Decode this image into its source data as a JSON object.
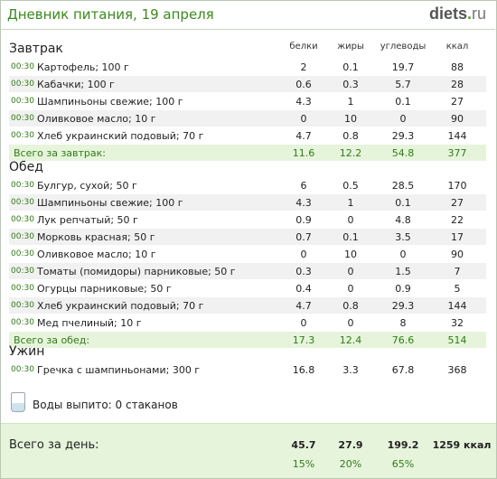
{
  "header": {
    "title": "Дневник питания, 19 апреля",
    "logo_main": "diets",
    "logo_dot": ".",
    "logo_tld": "ru"
  },
  "columns": {
    "protein": "белки",
    "fat": "жиры",
    "carbs": "углеводы",
    "kcal": "ккал"
  },
  "meals": [
    {
      "title": "Завтрак",
      "items": [
        {
          "time": "00:30",
          "name": "Картофель; 100 г",
          "protein": "2",
          "fat": "0.1",
          "carbs": "19.7",
          "kcal": "88"
        },
        {
          "time": "00:30",
          "name": "Кабачки; 100 г",
          "protein": "0.6",
          "fat": "0.3",
          "carbs": "5.7",
          "kcal": "28"
        },
        {
          "time": "00:30",
          "name": "Шампиньоны свежие; 100 г",
          "protein": "4.3",
          "fat": "1",
          "carbs": "0.1",
          "kcal": "27"
        },
        {
          "time": "00:30",
          "name": "Оливковое масло; 10 г",
          "protein": "0",
          "fat": "10",
          "carbs": "0",
          "kcal": "90"
        },
        {
          "time": "00:30",
          "name": "Хлеб украинский подовый; 70 г",
          "protein": "4.7",
          "fat": "0.8",
          "carbs": "29.3",
          "kcal": "144"
        }
      ],
      "total": {
        "label": "Всего за завтрак:",
        "protein": "11.6",
        "fat": "12.2",
        "carbs": "54.8",
        "kcal": "377"
      }
    },
    {
      "title": "Обед",
      "items": [
        {
          "time": "00:30",
          "name": "Булгур, сухой; 50 г",
          "protein": "6",
          "fat": "0.5",
          "carbs": "28.5",
          "kcal": "170"
        },
        {
          "time": "00:30",
          "name": "Шампиньоны свежие; 100 г",
          "protein": "4.3",
          "fat": "1",
          "carbs": "0.1",
          "kcal": "27"
        },
        {
          "time": "00:30",
          "name": "Лук репчатый; 50 г",
          "protein": "0.9",
          "fat": "0",
          "carbs": "4.8",
          "kcal": "22"
        },
        {
          "time": "00:30",
          "name": "Морковь красная; 50 г",
          "protein": "0.7",
          "fat": "0.1",
          "carbs": "3.5",
          "kcal": "17"
        },
        {
          "time": "00:30",
          "name": "Оливковое масло; 10 г",
          "protein": "0",
          "fat": "10",
          "carbs": "0",
          "kcal": "90"
        },
        {
          "time": "00:30",
          "name": "Томаты (помидоры) парниковые; 50 г",
          "protein": "0.3",
          "fat": "0",
          "carbs": "1.5",
          "kcal": "7"
        },
        {
          "time": "00:30",
          "name": "Огурцы парниковые; 50 г",
          "protein": "0.4",
          "fat": "0",
          "carbs": "0.9",
          "kcal": "5"
        },
        {
          "time": "00:30",
          "name": "Хлеб украинский подовый; 70 г",
          "protein": "4.7",
          "fat": "0.8",
          "carbs": "29.3",
          "kcal": "144"
        },
        {
          "time": "00:30",
          "name": "Мед пчелиный; 10 г",
          "protein": "0",
          "fat": "0",
          "carbs": "8",
          "kcal": "32"
        }
      ],
      "total": {
        "label": "Всего за обед:",
        "protein": "17.3",
        "fat": "12.4",
        "carbs": "76.6",
        "kcal": "514"
      }
    },
    {
      "title": "Ужин",
      "items": [
        {
          "time": "00:30",
          "name": "Гречка с шампиньонами; 300 г",
          "protein": "16.8",
          "fat": "3.3",
          "carbs": "67.8",
          "kcal": "368"
        }
      ],
      "total": null
    }
  ],
  "water": {
    "label": "Воды выпито: 0 стаканов"
  },
  "day_total": {
    "label": "Всего за день:",
    "protein": "45.7",
    "fat": "27.9",
    "carbs": "199.2",
    "kcal": "1259 ккал",
    "protein_pct": "15%",
    "fat_pct": "20%",
    "carbs_pct": "65%"
  }
}
